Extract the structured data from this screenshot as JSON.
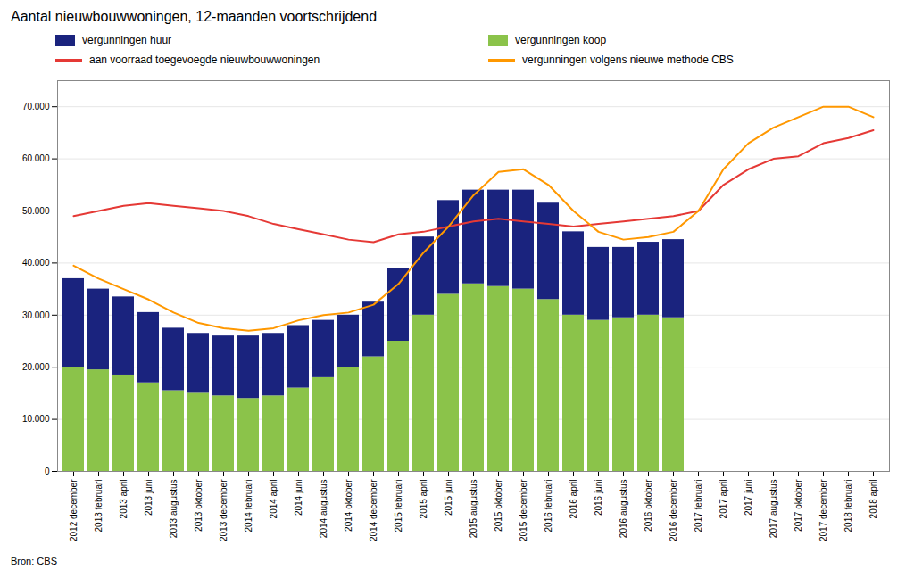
{
  "chart_data": {
    "type": "bar",
    "title": "Aantal nieuwbouwwoningen, 12-maanden voortschrijdend",
    "source": "Bron: CBS",
    "categories": [
      "2012 december",
      "2013 februari",
      "2013 april",
      "2013 juni",
      "2013 augustus",
      "2013 oktober",
      "2013 december",
      "2014 februari",
      "2014 april",
      "2014 juni",
      "2014 augustus",
      "2014 oktober",
      "2014 december",
      "2015 februari",
      "2015 april",
      "2015 juni",
      "2015 augustus",
      "2015 oktober",
      "2015 december",
      "2016 februari",
      "2016 april",
      "2016 juni",
      "2016 augustus",
      "2016 oktober",
      "2016 december",
      "2017 februari",
      "2017 april",
      "2017 juni",
      "2017 augustus",
      "2017 oktober",
      "2017 december",
      "2018 februari",
      "2018 april"
    ],
    "series": [
      {
        "name": "vergunningen huur",
        "type": "bar",
        "color": "#1a237e",
        "values": [
          17000,
          15500,
          15000,
          13500,
          12000,
          11500,
          11500,
          12000,
          12000,
          12000,
          11000,
          10000,
          10500,
          14000,
          15000,
          18000,
          18000,
          18500,
          19000,
          18500,
          16000,
          14000,
          13500,
          14000,
          15000,
          null,
          null,
          null,
          null,
          null,
          null,
          null,
          null
        ]
      },
      {
        "name": "vergunningen koop",
        "type": "bar",
        "color": "#8bc34a",
        "values": [
          20000,
          19500,
          18500,
          17000,
          15500,
          15000,
          14500,
          14000,
          14500,
          16000,
          18000,
          20000,
          22000,
          25000,
          30000,
          34000,
          36000,
          35500,
          35000,
          33000,
          30000,
          29000,
          29500,
          30000,
          29500,
          null,
          null,
          null,
          null,
          null,
          null,
          null,
          null
        ]
      },
      {
        "name": "aan voorraad toegevoegde nieuwbouwwoningen",
        "type": "line",
        "color": "#e53935",
        "values": [
          49000,
          50000,
          51000,
          51500,
          51000,
          50500,
          50000,
          49000,
          47500,
          46500,
          45500,
          44500,
          44000,
          45500,
          46000,
          47000,
          48000,
          48500,
          48000,
          47500,
          47000,
          47500,
          48000,
          48500,
          49000,
          50000,
          55000,
          58000,
          60000,
          60500,
          63000,
          64000,
          65500
        ]
      },
      {
        "name": "vergunningen volgens nieuwe methode CBS",
        "type": "line",
        "color": "#ff9800",
        "values": [
          39500,
          37000,
          35000,
          33000,
          30500,
          28500,
          27500,
          27000,
          27500,
          29000,
          30000,
          30500,
          32000,
          36000,
          42000,
          47000,
          53000,
          57500,
          58000,
          55000,
          50000,
          46000,
          44500,
          45000,
          46000,
          50000,
          58000,
          63000,
          66000,
          68000,
          70000,
          70000,
          68000
        ]
      }
    ],
    "stacked": true,
    "ylim": [
      0,
      75000
    ],
    "yticks": [
      0,
      {
        "value": 10000,
        "label": "10.000"
      },
      {
        "value": 20000,
        "label": "20.000"
      },
      {
        "value": 30000,
        "label": "30.000"
      },
      {
        "value": 40000,
        "label": "40.000"
      },
      {
        "value": 50000,
        "label": "50.000"
      },
      {
        "value": 60000,
        "label": "60.000"
      },
      {
        "value": 70000,
        "label": "70.000"
      }
    ],
    "grid": true,
    "legend": "top"
  }
}
